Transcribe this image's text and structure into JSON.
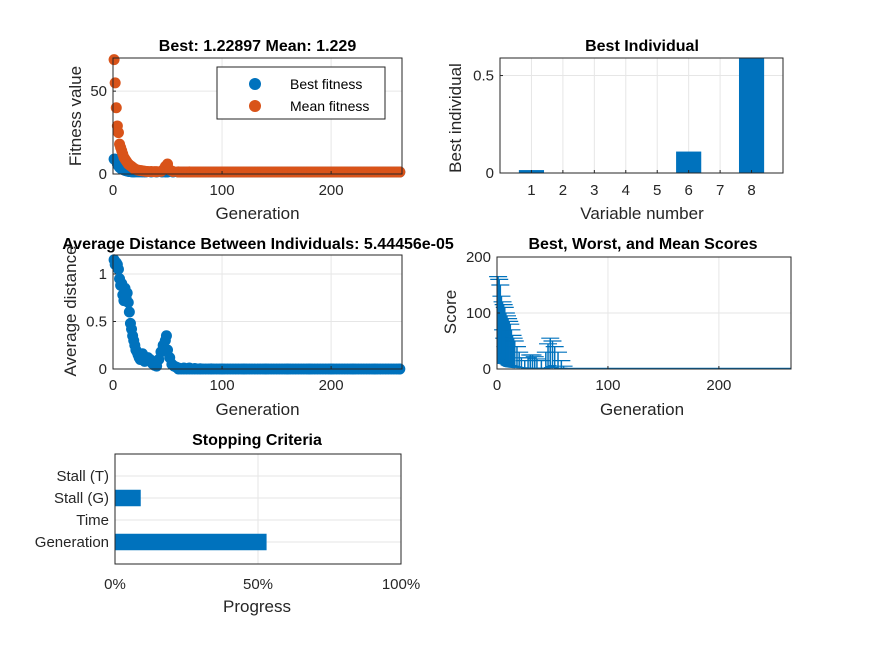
{
  "colors": {
    "blue": "#0072bd",
    "orange": "#d95319",
    "axis": "#262626",
    "grid": "#e6e6e6"
  },
  "chart_data": [
    {
      "id": "fitness",
      "type": "scatter",
      "title": "Best: 1.22897 Mean: 1.229",
      "xlabel": "Generation",
      "ylabel": "Fitness value",
      "xlim": [
        0,
        265
      ],
      "ylim": [
        0,
        70
      ],
      "xticks": [
        0,
        100,
        200
      ],
      "yticks": [
        0,
        50
      ],
      "legend": {
        "placement": "top-right",
        "entries": [
          "Best fitness",
          "Mean fitness"
        ]
      },
      "series": [
        {
          "name": "Best fitness",
          "color": "#0072bd",
          "x": [
            1,
            2,
            3,
            4,
            5,
            6,
            7,
            8,
            9,
            10,
            11,
            12,
            13,
            14,
            15,
            16,
            17,
            18,
            19,
            20,
            22,
            24,
            26,
            28,
            30,
            35,
            40,
            45,
            48,
            50,
            55,
            60,
            70,
            80,
            100,
            120,
            150,
            180,
            210,
            240,
            263
          ],
          "y": [
            9,
            9,
            8,
            6,
            5,
            4,
            3.5,
            3,
            2.8,
            2.5,
            2.2,
            2,
            1.8,
            1.6,
            1.5,
            1.4,
            1.35,
            1.3,
            1.3,
            1.3,
            1.28,
            1.27,
            1.26,
            1.25,
            1.25,
            1.24,
            1.24,
            1.23,
            1.23,
            1.23,
            1.23,
            1.23,
            1.23,
            1.23,
            1.23,
            1.23,
            1.23,
            1.23,
            1.23,
            1.23,
            1.23
          ]
        },
        {
          "name": "Mean fitness",
          "color": "#d95319",
          "x": [
            1,
            2,
            3,
            4,
            5,
            6,
            7,
            8,
            9,
            10,
            11,
            12,
            13,
            14,
            15,
            16,
            17,
            18,
            19,
            20,
            22,
            24,
            26,
            28,
            30,
            32,
            35,
            38,
            40,
            44,
            46,
            48,
            50,
            52,
            55,
            60,
            70,
            80,
            100,
            120,
            150,
            180,
            210,
            240,
            263
          ],
          "y": [
            69,
            55,
            40,
            29,
            25,
            18,
            16,
            14,
            12,
            10,
            9,
            8,
            7,
            6,
            5.5,
            5,
            4.5,
            4,
            3.5,
            3,
            2.5,
            2.2,
            2,
            1.8,
            1.6,
            1.5,
            1.5,
            1.4,
            1.4,
            1.6,
            2.5,
            4.5,
            6,
            2.5,
            1.5,
            1.3,
            1.25,
            1.23,
            1.23,
            1.23,
            1.23,
            1.23,
            1.23,
            1.23,
            1.23
          ]
        }
      ]
    },
    {
      "id": "best-individual",
      "type": "bar",
      "title": "Best Individual",
      "xlabel": "Variable number",
      "ylabel": "Best individual",
      "categories": [
        "1",
        "2",
        "3",
        "4",
        "5",
        "6",
        "7",
        "8"
      ],
      "values": [
        0.015,
        0,
        0,
        0,
        0,
        0.11,
        0,
        0.59
      ],
      "ylim": [
        0,
        0.59
      ],
      "yticks": [
        0,
        0.5
      ],
      "color": "#0072bd"
    },
    {
      "id": "distance",
      "type": "scatter",
      "title": "Average Distance Between Individuals: 5.44456e-05",
      "xlabel": "Generation",
      "ylabel": "Average distance",
      "xlim": [
        0,
        265
      ],
      "ylim": [
        0,
        1.2
      ],
      "xticks": [
        0,
        100,
        200
      ],
      "yticks": [
        0,
        0.5,
        1
      ],
      "color": "#0072bd",
      "x": [
        1,
        2,
        3,
        4,
        5,
        6,
        7,
        8,
        9,
        10,
        11,
        12,
        13,
        14,
        15,
        16,
        17,
        18,
        19,
        20,
        21,
        22,
        23,
        24,
        25,
        26,
        27,
        28,
        29,
        30,
        32,
        34,
        36,
        38,
        40,
        42,
        44,
        46,
        48,
        49,
        50,
        52,
        54,
        56,
        58,
        60,
        65,
        70,
        75,
        80,
        90,
        100,
        120,
        140,
        160,
        180,
        200,
        220,
        240,
        263
      ],
      "y": [
        1.15,
        1.1,
        1.12,
        1.1,
        1.05,
        0.95,
        0.88,
        0.9,
        0.78,
        0.72,
        0.85,
        0.75,
        0.8,
        0.7,
        0.6,
        0.48,
        0.42,
        0.35,
        0.3,
        0.25,
        0.2,
        0.18,
        0.15,
        0.12,
        0.1,
        0.14,
        0.16,
        0.12,
        0.08,
        0.1,
        0.12,
        0.1,
        0.06,
        0.04,
        0.03,
        0.1,
        0.18,
        0.25,
        0.3,
        0.35,
        0.2,
        0.12,
        0.05,
        0.03,
        0.02,
        0.01,
        0.01,
        0.01,
        0.005,
        0.002,
        0.001,
        0.0005,
        0.0002,
        0.0001,
        0.0001,
        0.0001,
        0.0001,
        0.0001,
        0.0001,
        0.0001
      ]
    },
    {
      "id": "scores",
      "type": "bar",
      "title": "Best, Worst, and Mean Scores",
      "xlabel": "Generation",
      "ylabel": "Score",
      "xlim": [
        0,
        265
      ],
      "ylim": [
        0,
        200
      ],
      "xticks": [
        0,
        100,
        200
      ],
      "yticks": [
        0,
        100,
        200
      ],
      "color": "#0072bd",
      "x": [
        1,
        2,
        3,
        4,
        5,
        6,
        7,
        8,
        9,
        10,
        11,
        12,
        13,
        14,
        15,
        16,
        18,
        20,
        22,
        25,
        28,
        30,
        32,
        34,
        36,
        40,
        44,
        46,
        48,
        50,
        52,
        55,
        58,
        60
      ],
      "worst": [
        165,
        160,
        150,
        130,
        120,
        115,
        110,
        100,
        95,
        90,
        85,
        80,
        70,
        60,
        55,
        50,
        40,
        30,
        20,
        15,
        20,
        25,
        25,
        22,
        18,
        15,
        30,
        45,
        55,
        50,
        40,
        30,
        15,
        5
      ],
      "mean": [
        70,
        55,
        40,
        29,
        25,
        18,
        16,
        14,
        12,
        10,
        9,
        8,
        7,
        6,
        5.5,
        5,
        4,
        3,
        2.5,
        2,
        1.8,
        1.6,
        1.5,
        1.5,
        1.4,
        1.4,
        1.6,
        2.5,
        4.5,
        6,
        2.5,
        1.5,
        1.3,
        1.25
      ],
      "best": [
        9,
        9,
        8,
        6,
        5,
        4,
        3.5,
        3,
        2.8,
        2.5,
        2.2,
        2,
        1.8,
        1.6,
        1.5,
        1.4,
        1.3,
        1.3,
        1.28,
        1.27,
        1.26,
        1.25,
        1.25,
        1.24,
        1.24,
        1.24,
        1.23,
        1.23,
        1.23,
        1.23,
        1.23,
        1.23,
        1.23,
        1.23
      ]
    },
    {
      "id": "stopping",
      "type": "bar",
      "orientation": "horizontal",
      "title": "Stopping Criteria",
      "xlabel": "Progress",
      "categories": [
        "Stall (T)",
        "Stall (G)",
        "Time",
        "Generation"
      ],
      "values": [
        0,
        9,
        0,
        53
      ],
      "xlim": [
        0,
        100
      ],
      "xticklabels": [
        "0%",
        "50%",
        "100%"
      ],
      "color": "#0072bd"
    }
  ]
}
